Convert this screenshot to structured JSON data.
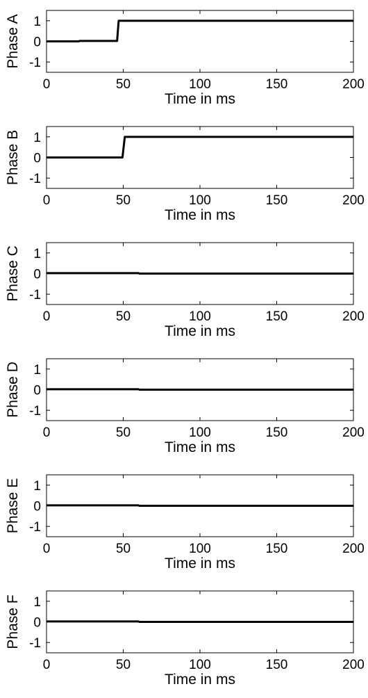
{
  "chart_data": [
    {
      "type": "line",
      "ylabel": "Phase A",
      "xlabel": "Time in ms",
      "xlim": [
        0,
        200
      ],
      "ylim": [
        -1.5,
        1.5
      ],
      "x_ticks": [
        0,
        50,
        100,
        150,
        200
      ],
      "y_ticks": [
        1,
        0,
        -1
      ],
      "grid": false,
      "series": [
        {
          "x": [
            0,
            21,
            21.5,
            46,
            47,
            200
          ],
          "y": [
            0,
            0,
            0.02,
            0.02,
            1,
            1
          ],
          "color": "#000000"
        }
      ]
    },
    {
      "type": "line",
      "ylabel": "Phase B",
      "xlabel": "Time in ms",
      "xlim": [
        0,
        200
      ],
      "ylim": [
        -1.5,
        1.5
      ],
      "x_ticks": [
        0,
        50,
        100,
        150,
        200
      ],
      "y_ticks": [
        1,
        0,
        -1
      ],
      "grid": false,
      "series": [
        {
          "x": [
            0,
            49.5,
            51,
            200
          ],
          "y": [
            0,
            0,
            1,
            1
          ],
          "color": "#000000"
        }
      ]
    },
    {
      "type": "line",
      "ylabel": "Phase C",
      "xlabel": "Time in ms",
      "xlim": [
        0,
        200
      ],
      "ylim": [
        -1.5,
        1.5
      ],
      "x_ticks": [
        0,
        50,
        100,
        150,
        200
      ],
      "y_ticks": [
        1,
        0,
        -1
      ],
      "grid": false,
      "series": [
        {
          "x": [
            0,
            60,
            60.5,
            200
          ],
          "y": [
            0.02,
            0.02,
            0,
            0
          ],
          "color": "#000000"
        }
      ]
    },
    {
      "type": "line",
      "ylabel": "Phase D",
      "xlabel": "Time in ms",
      "xlim": [
        0,
        200
      ],
      "ylim": [
        -1.5,
        1.5
      ],
      "x_ticks": [
        0,
        50,
        100,
        150,
        200
      ],
      "y_ticks": [
        1,
        0,
        -1
      ],
      "grid": false,
      "series": [
        {
          "x": [
            0,
            60,
            60.5,
            200
          ],
          "y": [
            0.02,
            0.02,
            0,
            0
          ],
          "color": "#000000"
        }
      ]
    },
    {
      "type": "line",
      "ylabel": "Phase E",
      "xlabel": "Time in ms",
      "xlim": [
        0,
        200
      ],
      "ylim": [
        -1.5,
        1.5
      ],
      "x_ticks": [
        0,
        50,
        100,
        150,
        200
      ],
      "y_ticks": [
        1,
        0,
        -1
      ],
      "grid": false,
      "series": [
        {
          "x": [
            0,
            60,
            60.5,
            200
          ],
          "y": [
            0.02,
            0.02,
            0,
            0
          ],
          "color": "#000000"
        }
      ]
    },
    {
      "type": "line",
      "ylabel": "Phase F",
      "xlabel": "Time in ms",
      "xlim": [
        0,
        200
      ],
      "ylim": [
        -1.5,
        1.5
      ],
      "x_ticks": [
        0,
        50,
        100,
        150,
        200
      ],
      "y_ticks": [
        1,
        0,
        -1
      ],
      "grid": false,
      "series": [
        {
          "x": [
            0,
            60,
            60.5,
            200
          ],
          "y": [
            0.02,
            0.02,
            0,
            0
          ],
          "color": "#000000"
        }
      ]
    }
  ]
}
